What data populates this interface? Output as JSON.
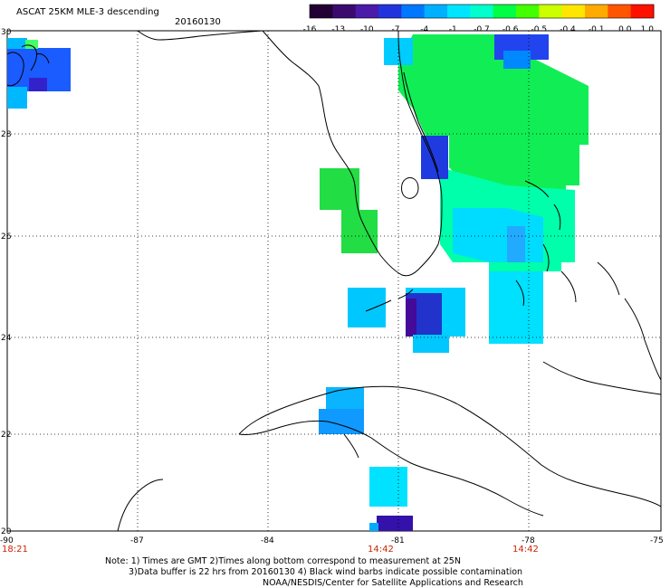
{
  "header": {
    "title": "ASCAT 25KM MLE-3 descending",
    "date": "20160130"
  },
  "colorbar": {
    "labels": [
      "-16",
      "-13",
      "-10",
      "-7",
      "-4",
      "-1",
      "-0.7",
      "-0.6",
      "-0.5",
      "-0.4",
      "-0.1",
      "0.0",
      "1.0"
    ],
    "colors": [
      "#220033",
      "#3b0a6e",
      "#4a1aa8",
      "#2233dd",
      "#0077ff",
      "#00b0ff",
      "#00e5ff",
      "#00ffcc",
      "#00ff44",
      "#44ff00",
      "#ccff00",
      "#ffe600",
      "#ffaa00",
      "#ff5500",
      "#ff1100"
    ]
  },
  "axes": {
    "lat_labels": [
      "30",
      "28",
      "26",
      "24",
      "22",
      "20"
    ],
    "lon_labels": [
      "-90",
      "-87",
      "-84",
      "-81",
      "-78",
      "-75"
    ],
    "time_labels": [
      {
        "lon": "-90",
        "text": "18:21"
      },
      {
        "lon": "-81",
        "text": "14:42"
      },
      {
        "lon": "-78",
        "text": "14:42"
      }
    ]
  },
  "footer": {
    "line1": "Note: 1) Times are GMT 2)Times along bottom correspond to measurement at 25N",
    "line2": "3)Data buffer is 22 hrs from 20160130 4) Black wind barbs indicate possible contamination",
    "line3": "NOAA/NESDIS/Center for Satellite Applications and Research"
  }
}
